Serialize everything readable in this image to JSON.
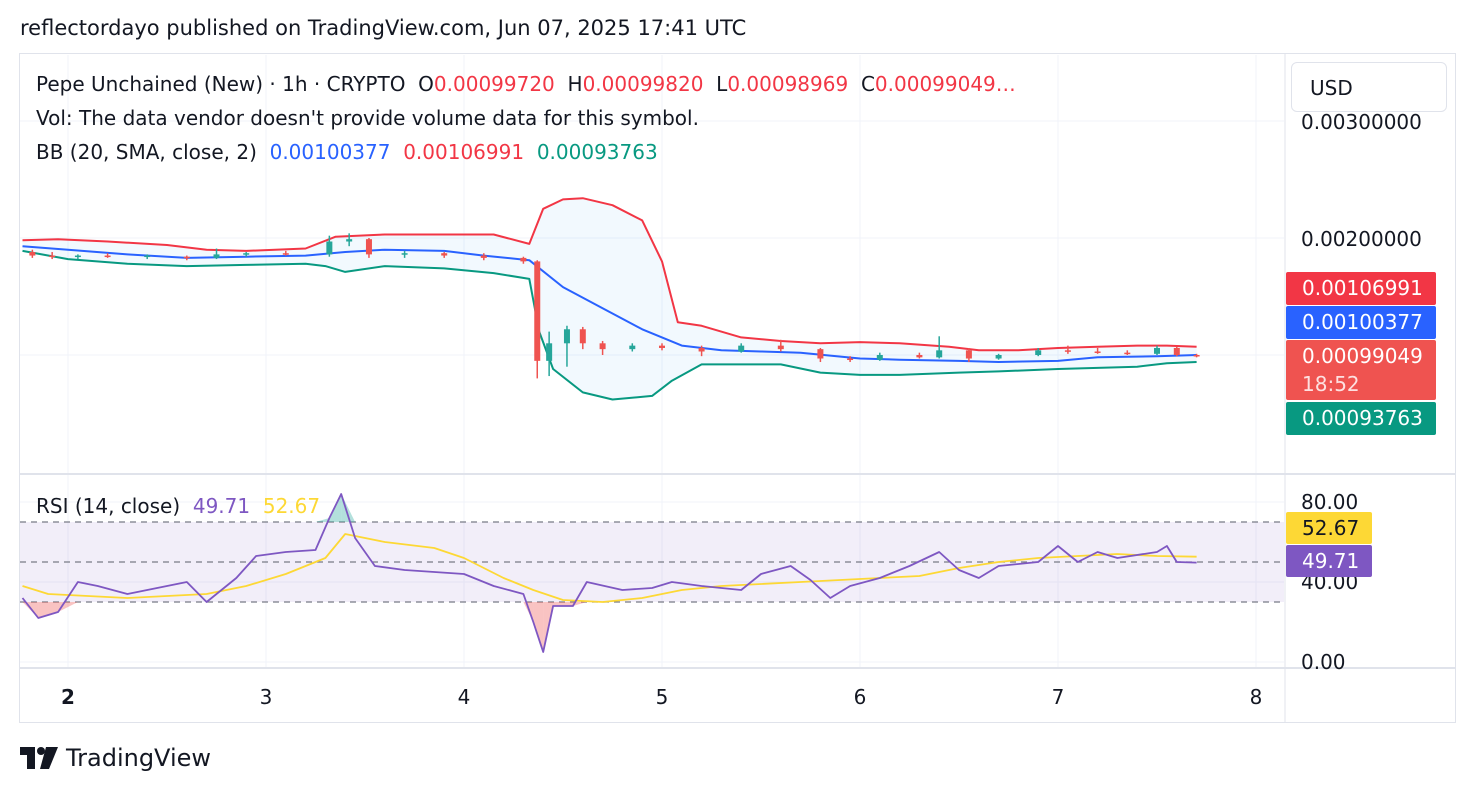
{
  "header": {
    "published": "reflectordayo published on TradingView.com, Jun 07, 2025 17:41 UTC"
  },
  "legend": {
    "symbol": "Pepe Unchained (New) · 1h · CRYPTO",
    "o_label": "O",
    "o_val": "0.00099720",
    "h_label": "H",
    "h_val": "0.00099820",
    "l_label": "L",
    "l_val": "0.00098969",
    "c_label": "C",
    "c_val": "0.00099049…",
    "vol": "Vol: The data vendor doesn't provide volume data for this symbol.",
    "bb_label": "BB (20, SMA, close, 2)",
    "bb_basis": "0.00100377",
    "bb_upper": "0.00106991",
    "bb_lower": "0.00093763",
    "rsi_label": "RSI (14, close)",
    "rsi_val": "49.71",
    "rsi_ma": "52.67"
  },
  "currency": "USD",
  "price_tags": {
    "upper": "0.00106991",
    "basis": "0.00100377",
    "close": "0.00099049",
    "countdown": "18:52",
    "lower": "0.00093763"
  },
  "rsi_tags": {
    "ma": "52.67",
    "rsi": "49.71"
  },
  "colors": {
    "up": "#26a69a",
    "down": "#ef5350",
    "bb_upper": "#f23645",
    "bb_basis": "#2962ff",
    "bb_lower": "#089981",
    "rsi": "#7e57c2",
    "rsi_ma": "#fdd835",
    "close_tag": "#ef5350"
  },
  "footer": {
    "brand": "TradingView",
    "logo_icon": "tradingview-logo-icon"
  },
  "chart_data": [
    {
      "type": "candlestick",
      "title": "Pepe Unchained (New) · 1h · CRYPTO",
      "x_ticks": [
        "2",
        "3",
        "4",
        "5",
        "6",
        "7",
        "8"
      ],
      "y_ticks": [
        "0.00300000",
        "0.00200000"
      ],
      "x_range": [
        1.77,
        8.15
      ],
      "ylim": [
        0.00057,
        0.0032
      ],
      "grid": true,
      "series": [
        {
          "name": "Upper",
          "points": [
            [
              1.77,
              0.00198
            ],
            [
              1.95,
              0.00199
            ],
            [
              2.2,
              0.00197
            ],
            [
              2.5,
              0.00194
            ],
            [
              2.7,
              0.0019
            ],
            [
              2.9,
              0.00189
            ],
            [
              3.2,
              0.00191
            ],
            [
              3.35,
              0.00201
            ],
            [
              3.6,
              0.00203
            ],
            [
              3.9,
              0.00203
            ],
            [
              4.15,
              0.00203
            ],
            [
              4.33,
              0.00195
            ],
            [
              4.4,
              0.00225
            ],
            [
              4.5,
              0.00233
            ],
            [
              4.6,
              0.00234
            ],
            [
              4.75,
              0.00228
            ],
            [
              4.9,
              0.00215
            ],
            [
              5.0,
              0.0018
            ],
            [
              5.08,
              0.00128
            ],
            [
              5.2,
              0.00125
            ],
            [
              5.4,
              0.00115
            ],
            [
              5.6,
              0.00112
            ],
            [
              5.8,
              0.0011
            ],
            [
              6.0,
              0.00111
            ],
            [
              6.2,
              0.0011
            ],
            [
              6.45,
              0.00107
            ],
            [
              6.6,
              0.00104
            ],
            [
              6.8,
              0.00104
            ],
            [
              7.0,
              0.00106
            ],
            [
              7.2,
              0.00107
            ],
            [
              7.4,
              0.00108
            ],
            [
              7.55,
              0.00108
            ],
            [
              7.7,
              0.00107
            ]
          ]
        },
        {
          "name": "Basis",
          "points": [
            [
              1.77,
              0.00193
            ],
            [
              2.0,
              0.0019
            ],
            [
              2.3,
              0.00186
            ],
            [
              2.6,
              0.00183
            ],
            [
              2.9,
              0.00184
            ],
            [
              3.2,
              0.00185
            ],
            [
              3.4,
              0.00188
            ],
            [
              3.6,
              0.0019
            ],
            [
              3.9,
              0.00189
            ],
            [
              4.1,
              0.00185
            ],
            [
              4.33,
              0.00181
            ],
            [
              4.5,
              0.00158
            ],
            [
              4.7,
              0.0014
            ],
            [
              4.9,
              0.00122
            ],
            [
              5.1,
              0.00108
            ],
            [
              5.3,
              0.00104
            ],
            [
              5.5,
              0.00103
            ],
            [
              5.7,
              0.00102
            ],
            [
              6.0,
              0.00097
            ],
            [
              6.2,
              0.00096
            ],
            [
              6.5,
              0.00095
            ],
            [
              6.7,
              0.00094
            ],
            [
              7.0,
              0.00095
            ],
            [
              7.2,
              0.00098
            ],
            [
              7.5,
              0.00099
            ],
            [
              7.7,
              0.001
            ]
          ]
        },
        {
          "name": "Lower",
          "points": [
            [
              1.77,
              0.00189
            ],
            [
              2.0,
              0.00182
            ],
            [
              2.3,
              0.00178
            ],
            [
              2.6,
              0.00176
            ],
            [
              2.9,
              0.00177
            ],
            [
              3.2,
              0.00178
            ],
            [
              3.3,
              0.00176
            ],
            [
              3.4,
              0.00171
            ],
            [
              3.6,
              0.00176
            ],
            [
              3.9,
              0.00174
            ],
            [
              4.15,
              0.0017
            ],
            [
              4.33,
              0.00165
            ],
            [
              4.38,
              0.0012
            ],
            [
              4.45,
              0.00088
            ],
            [
              4.6,
              0.00068
            ],
            [
              4.75,
              0.00062
            ],
            [
              4.95,
              0.00065
            ],
            [
              5.05,
              0.00078
            ],
            [
              5.2,
              0.00092
            ],
            [
              5.4,
              0.00092
            ],
            [
              5.6,
              0.00092
            ],
            [
              5.8,
              0.00085
            ],
            [
              6.0,
              0.00083
            ],
            [
              6.2,
              0.00083
            ],
            [
              6.5,
              0.00085
            ],
            [
              6.7,
              0.00086
            ],
            [
              7.0,
              0.00088
            ],
            [
              7.2,
              0.00089
            ],
            [
              7.4,
              0.0009
            ],
            [
              7.55,
              0.00093
            ],
            [
              7.7,
              0.00094
            ]
          ]
        },
        {
          "name": "Candles",
          "ohlc": [
            [
              1.82,
              0.00188,
              0.0019,
              0.00183,
              0.00185
            ],
            [
              1.92,
              0.00185,
              0.00188,
              0.00182,
              0.00184
            ],
            [
              2.05,
              0.00184,
              0.00186,
              0.00182,
              0.00185
            ],
            [
              2.2,
              0.00185,
              0.00187,
              0.00183,
              0.00184
            ],
            [
              2.4,
              0.00184,
              0.00186,
              0.00182,
              0.00185
            ],
            [
              2.6,
              0.00184,
              0.00185,
              0.00181,
              0.00183
            ],
            [
              2.75,
              0.00183,
              0.00191,
              0.00182,
              0.00186
            ],
            [
              2.9,
              0.00186,
              0.00188,
              0.00184,
              0.00187
            ],
            [
              3.1,
              0.00187,
              0.00189,
              0.00185,
              0.00186
            ],
            [
              3.32,
              0.00186,
              0.00202,
              0.00184,
              0.00197
            ],
            [
              3.42,
              0.00197,
              0.00204,
              0.00193,
              0.00199
            ],
            [
              3.52,
              0.00199,
              0.002,
              0.00183,
              0.00186
            ],
            [
              3.7,
              0.00186,
              0.00189,
              0.00183,
              0.00187
            ],
            [
              3.9,
              0.00187,
              0.00188,
              0.00183,
              0.00185
            ],
            [
              4.1,
              0.00185,
              0.00187,
              0.00181,
              0.00183
            ],
            [
              4.3,
              0.00183,
              0.00184,
              0.00178,
              0.0018
            ],
            [
              4.37,
              0.0018,
              0.00181,
              0.0008,
              0.00095
            ],
            [
              4.43,
              0.00095,
              0.0012,
              0.00082,
              0.0011
            ],
            [
              4.52,
              0.0011,
              0.00125,
              0.0009,
              0.00122
            ],
            [
              4.6,
              0.00122,
              0.00124,
              0.00105,
              0.0011
            ],
            [
              4.7,
              0.0011,
              0.00112,
              0.001,
              0.00105
            ],
            [
              4.85,
              0.00105,
              0.0011,
              0.00103,
              0.00108
            ],
            [
              5.0,
              0.00108,
              0.0011,
              0.00104,
              0.00106
            ],
            [
              5.2,
              0.00106,
              0.00108,
              0.00099,
              0.00103
            ],
            [
              5.4,
              0.00103,
              0.0011,
              0.00102,
              0.00108
            ],
            [
              5.6,
              0.00108,
              0.00113,
              0.00103,
              0.00105
            ],
            [
              5.8,
              0.00105,
              0.00106,
              0.00094,
              0.00097
            ],
            [
              5.95,
              0.00097,
              0.00099,
              0.00094,
              0.00096
            ],
            [
              6.1,
              0.00096,
              0.00102,
              0.00095,
              0.001
            ],
            [
              6.3,
              0.001,
              0.00102,
              0.00097,
              0.00098
            ],
            [
              6.4,
              0.00098,
              0.00116,
              0.00097,
              0.00104
            ],
            [
              6.55,
              0.00104,
              0.00106,
              0.00094,
              0.00097
            ],
            [
              6.7,
              0.00097,
              0.00101,
              0.00096,
              0.001
            ],
            [
              6.9,
              0.001,
              0.00106,
              0.00099,
              0.00104
            ],
            [
              7.05,
              0.00104,
              0.00108,
              0.00101,
              0.00103
            ],
            [
              7.2,
              0.00103,
              0.00106,
              0.00101,
              0.00102
            ],
            [
              7.35,
              0.00102,
              0.00104,
              0.001,
              0.00101
            ],
            [
              7.5,
              0.00101,
              0.00108,
              0.001,
              0.00106
            ],
            [
              7.6,
              0.00106,
              0.00107,
              0.00099,
              0.001
            ],
            [
              7.7,
              0.001,
              0.00101,
              0.00098,
              0.00099
            ]
          ]
        }
      ]
    },
    {
      "type": "line",
      "title": "RSI (14, close)",
      "y_ticks": [
        "80.00",
        "40.00",
        "0.00"
      ],
      "ylim": [
        0,
        100
      ],
      "bands": [
        30,
        50,
        70
      ],
      "series": [
        {
          "name": "RSI",
          "points": [
            [
              1.77,
              32
            ],
            [
              1.85,
              22
            ],
            [
              1.95,
              25
            ],
            [
              2.05,
              40
            ],
            [
              2.15,
              38
            ],
            [
              2.3,
              34
            ],
            [
              2.45,
              37
            ],
            [
              2.6,
              40
            ],
            [
              2.7,
              30
            ],
            [
              2.85,
              42
            ],
            [
              2.95,
              53
            ],
            [
              3.1,
              55
            ],
            [
              3.25,
              56
            ],
            [
              3.32,
              72
            ],
            [
              3.38,
              84
            ],
            [
              3.45,
              62
            ],
            [
              3.55,
              48
            ],
            [
              3.7,
              46
            ],
            [
              3.85,
              45
            ],
            [
              4.0,
              44
            ],
            [
              4.15,
              38
            ],
            [
              4.3,
              34
            ],
            [
              4.35,
              20
            ],
            [
              4.4,
              5
            ],
            [
              4.45,
              28
            ],
            [
              4.55,
              28
            ],
            [
              4.62,
              40
            ],
            [
              4.8,
              36
            ],
            [
              4.95,
              37
            ],
            [
              5.05,
              40
            ],
            [
              5.2,
              38
            ],
            [
              5.4,
              36
            ],
            [
              5.5,
              44
            ],
            [
              5.65,
              48
            ],
            [
              5.75,
              41
            ],
            [
              5.85,
              32
            ],
            [
              5.95,
              38
            ],
            [
              6.1,
              42
            ],
            [
              6.25,
              48
            ],
            [
              6.4,
              55
            ],
            [
              6.5,
              46
            ],
            [
              6.6,
              42
            ],
            [
              6.7,
              48
            ],
            [
              6.9,
              50
            ],
            [
              7.0,
              58
            ],
            [
              7.1,
              50
            ],
            [
              7.2,
              55
            ],
            [
              7.3,
              52
            ],
            [
              7.5,
              55
            ],
            [
              7.55,
              58
            ],
            [
              7.6,
              50
            ],
            [
              7.7,
              49.71
            ]
          ]
        },
        {
          "name": "RSI-based MA",
          "points": [
            [
              1.77,
              38
            ],
            [
              1.9,
              34
            ],
            [
              2.1,
              33
            ],
            [
              2.3,
              32
            ],
            [
              2.5,
              33
            ],
            [
              2.7,
              34
            ],
            [
              2.9,
              38
            ],
            [
              3.1,
              44
            ],
            [
              3.3,
              52
            ],
            [
              3.4,
              64
            ],
            [
              3.6,
              60
            ],
            [
              3.85,
              57
            ],
            [
              4.0,
              52
            ],
            [
              4.2,
              42
            ],
            [
              4.35,
              36
            ],
            [
              4.5,
              31
            ],
            [
              4.7,
              30
            ],
            [
              4.9,
              32
            ],
            [
              5.1,
              36
            ],
            [
              5.3,
              38
            ],
            [
              5.5,
              39
            ],
            [
              5.7,
              40
            ],
            [
              5.9,
              41
            ],
            [
              6.1,
              42
            ],
            [
              6.3,
              43
            ],
            [
              6.5,
              47
            ],
            [
              6.7,
              50
            ],
            [
              6.9,
              52
            ],
            [
              7.1,
              53
            ],
            [
              7.3,
              54
            ],
            [
              7.5,
              53
            ],
            [
              7.7,
              52.67
            ]
          ]
        }
      ]
    }
  ]
}
